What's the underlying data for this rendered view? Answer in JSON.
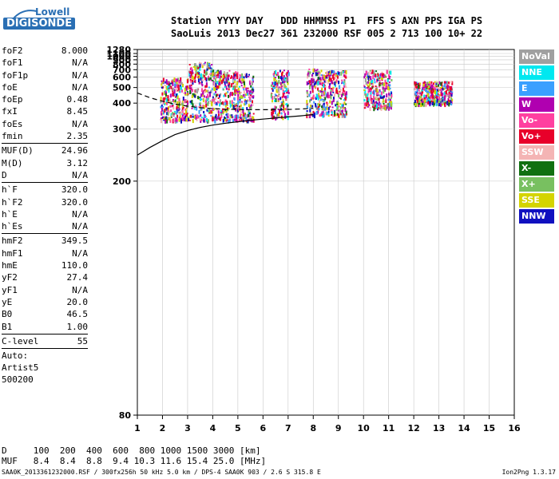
{
  "logo": {
    "line1": "Lowell",
    "line2": "DIGISONDE"
  },
  "header": {
    "line1": "Station YYYY DAY   DDD HHMMSS P1  FFS S AXN PPS IGA PS",
    "line2": "SaoLuis 2013 Dec27 361 232000 RSF 005 2 713 100 10+ 22"
  },
  "params": [
    {
      "label": "foF2",
      "value": "8.000"
    },
    {
      "label": "foF1",
      "value": "N/A"
    },
    {
      "label": "foF1p",
      "value": "N/A"
    },
    {
      "label": "foE",
      "value": "N/A"
    },
    {
      "label": "foEp",
      "value": "0.48"
    },
    {
      "label": "fxI",
      "value": "8.45"
    },
    {
      "label": "foEs",
      "value": "N/A"
    },
    {
      "label": "fmin",
      "value": "2.35"
    },
    {
      "sep": true
    },
    {
      "label": "MUF(D)",
      "value": "24.96"
    },
    {
      "label": "M(D)",
      "value": "3.12"
    },
    {
      "label": "D",
      "value": "N/A"
    },
    {
      "sep": true
    },
    {
      "label": "h`F",
      "value": "320.0"
    },
    {
      "label": "h`F2",
      "value": "320.0"
    },
    {
      "label": "h`E",
      "value": "N/A"
    },
    {
      "label": "h`Es",
      "value": "N/A"
    },
    {
      "sep": true
    },
    {
      "label": "hmF2",
      "value": "349.5"
    },
    {
      "label": "hmF1",
      "value": "N/A"
    },
    {
      "label": "hmE",
      "value": "110.0"
    },
    {
      "label": "yF2",
      "value": "27.4"
    },
    {
      "label": "yF1",
      "value": "N/A"
    },
    {
      "label": "yE",
      "value": "20.0"
    },
    {
      "label": "B0",
      "value": "46.5"
    },
    {
      "label": "B1",
      "value": "1.00"
    },
    {
      "sep": true
    },
    {
      "label": "C-level",
      "value": "55"
    },
    {
      "sep": true
    },
    {
      "text": "Auto:"
    },
    {
      "text": "Artist5"
    },
    {
      "text": "500200"
    }
  ],
  "legend": [
    {
      "label": "NoVal",
      "color": "#a0a0a0"
    },
    {
      "label": "NNE",
      "color": "#00e8f0"
    },
    {
      "label": "E",
      "color": "#3aa0ff"
    },
    {
      "label": "W",
      "color": "#b000b0"
    },
    {
      "label": "Vo-",
      "color": "#ff40a0"
    },
    {
      "label": "Vo+",
      "color": "#e8002a"
    },
    {
      "label": "SSW",
      "color": "#f4b4b4"
    },
    {
      "label": "X-",
      "color": "#107010"
    },
    {
      "label": "X+",
      "color": "#78c060"
    },
    {
      "label": "SSE",
      "color": "#d4d400"
    },
    {
      "label": "NNW",
      "color": "#1010c0"
    }
  ],
  "chart_data": {
    "type": "scatter",
    "x_ticks": [
      "1",
      "2",
      "3",
      "4",
      "5",
      "6",
      "7",
      "8",
      "9",
      "10",
      "11",
      "12",
      "13",
      "14",
      "15",
      "16"
    ],
    "y_ticks": [
      "80",
      "200",
      "300",
      "400",
      "500",
      "600",
      "700",
      "800",
      "900",
      "1000",
      "1100",
      "1280"
    ],
    "xlim": [
      1,
      16
    ],
    "y_axis": "reciprocal",
    "ylim": [
      80,
      1280
    ],
    "grid": true,
    "echo_bands": [
      {
        "x": [
          1.9,
          3.0
        ],
        "y": [
          330,
          600
        ]
      },
      {
        "x": [
          3.0,
          4.0
        ],
        "y": [
          330,
          850
        ]
      },
      {
        "x": [
          4.0,
          5.0
        ],
        "y": [
          330,
          700
        ]
      },
      {
        "x": [
          5.0,
          5.6
        ],
        "y": [
          330,
          650
        ]
      },
      {
        "x": [
          6.3,
          7.0
        ],
        "y": [
          340,
          700
        ]
      },
      {
        "x": [
          7.7,
          8.5
        ],
        "y": [
          350,
          720
        ]
      },
      {
        "x": [
          8.5,
          9.3
        ],
        "y": [
          350,
          700
        ]
      },
      {
        "x": [
          10.0,
          11.1
        ],
        "y": [
          380,
          700
        ]
      },
      {
        "x": [
          12.0,
          13.5
        ],
        "y": [
          400,
          560
        ]
      }
    ],
    "profile_curve": {
      "x": [
        1,
        1.5,
        2,
        2.5,
        3,
        3.5,
        4,
        4.5,
        5,
        5.5,
        6,
        6.5,
        7,
        7.5,
        8
      ],
      "y": [
        240,
        255,
        270,
        285,
        296,
        305,
        312,
        318,
        323,
        328,
        332,
        336,
        340,
        344,
        349
      ]
    },
    "dashed_curve": {
      "x": [
        1,
        1.5,
        2,
        2.5,
        3,
        3.5,
        4,
        4.5,
        5,
        5.5,
        6,
        6.5,
        7,
        7.5,
        8
      ],
      "y": [
        460,
        430,
        410,
        395,
        385,
        378,
        374,
        371,
        370,
        369,
        369,
        369,
        370,
        372,
        375
      ]
    }
  },
  "dmuf": {
    "d_label": "D",
    "d_values": "100  200  400  600  800 1000 1500 3000 [km]",
    "muf_label": "MUF",
    "muf_values": "8.4  8.4  8.8  9.4 10.3 11.6 15.4 25.0 [MHz]"
  },
  "footer": "SAA0K_2013361232000.RSF / 300fx256h 50 kHz 5.0 km / DPS-4 SAA0K 903 / 2.6 S 315.8 E",
  "version": "Ion2Png 1.3.17"
}
